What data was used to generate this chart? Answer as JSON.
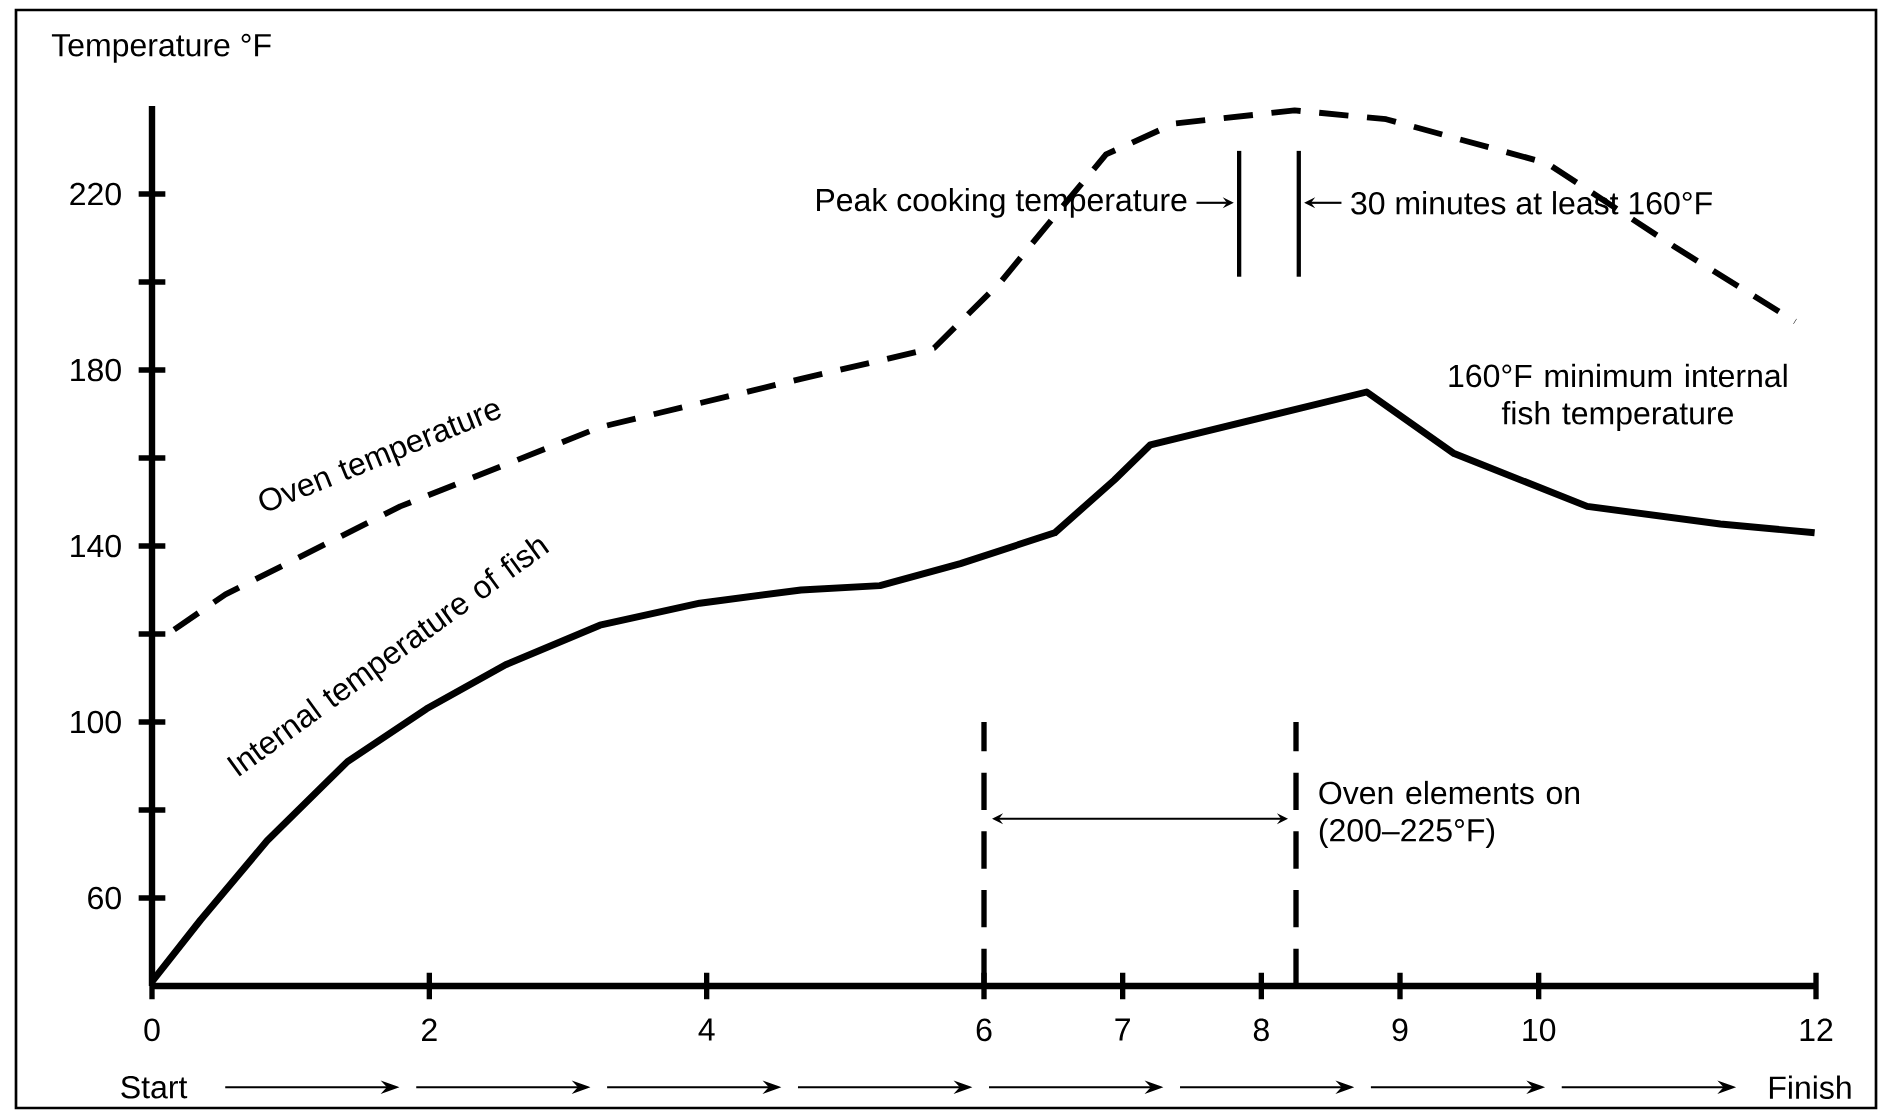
{
  "chart_data": {
    "type": "line",
    "ylabel": "Temperature °F",
    "xlim": [
      0,
      12
    ],
    "xticks": [
      0,
      2,
      4,
      6,
      7,
      8,
      9,
      10,
      12
    ],
    "ylim": [
      40,
      240
    ],
    "yticks": [
      60,
      {
        "value": 80,
        "label": null
      },
      100,
      {
        "value": 120,
        "label": null
      },
      140,
      {
        "value": 160,
        "label": null
      },
      180,
      {
        "value": 200,
        "label": null
      },
      220
    ],
    "series": [
      {
        "name": "Oven temperature",
        "color": "#000000",
        "line_style": "dashed",
        "x": [
          0.16,
          0.53,
          1.79,
          3.23,
          4.68,
          5.64,
          6.12,
          6.51,
          6.88,
          7.37,
          8.24,
          8.9,
          10.06,
          10.98,
          11.85
        ],
        "values": [
          121,
          129,
          149,
          167,
          178,
          185,
          200,
          215,
          229,
          236,
          239,
          237,
          227,
          208,
          191
        ]
      },
      {
        "name": "Internal temperature of fish",
        "color": "#000000",
        "line_style": "solid",
        "x": [
          0,
          0.35,
          0.83,
          1.41,
          1.98,
          2.55,
          3.23,
          3.95,
          4.68,
          5.25,
          5.83,
          6.51,
          6.94,
          7.2,
          8.76,
          9.39,
          10.35,
          11.31,
          11.99
        ],
        "values": [
          41,
          55,
          73,
          91,
          103,
          113,
          122,
          127,
          130,
          131,
          136,
          143,
          155,
          163,
          175,
          161,
          149,
          145,
          143
        ]
      }
    ],
    "ref_lines": [
      {
        "axis": "x",
        "value": 6,
        "line_style": "dashed"
      },
      {
        "axis": "x",
        "value": 8.25,
        "line_style": "dashed"
      },
      {
        "axis": "x",
        "value": 7.84,
        "line_style": "solid",
        "label": "Peak cooking temperature"
      },
      {
        "axis": "x",
        "value": 8.27,
        "line_style": "solid",
        "label": "30 minutes at least 160°F"
      }
    ],
    "annotations": [
      {
        "text": "160°F minimum internal fish temperature",
        "x": 8.76,
        "y": 175
      },
      {
        "text": "Oven elements on (200–225°F)",
        "x": 8.25,
        "y": 79
      },
      "Start",
      "Finish"
    ]
  }
}
